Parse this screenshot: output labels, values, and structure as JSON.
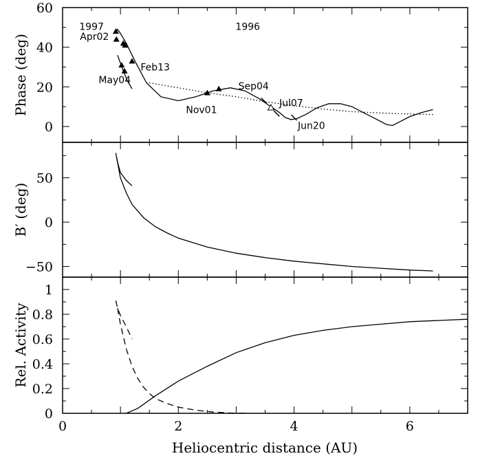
{
  "chart_data": [
    {
      "type": "line",
      "panel": "top",
      "ylabel": "Phase (deg)",
      "xlim": [
        0,
        7
      ],
      "ylim": [
        -8,
        60
      ],
      "yticks": [
        0,
        20,
        40,
        60
      ],
      "ytick_labels": [
        "0",
        "20",
        "40",
        "60"
      ],
      "series": [
        {
          "style": "solid",
          "x": [
            0.92,
            0.95,
            1.0,
            1.1,
            1.25,
            1.45,
            1.7,
            2.0,
            2.3,
            2.6,
            2.9,
            3.15,
            3.4,
            3.6,
            3.75,
            3.85,
            3.95,
            4.05,
            4.2,
            4.4,
            4.6,
            4.8,
            5.0,
            5.2,
            5.4,
            5.6,
            5.7,
            5.8,
            6.0,
            6.2,
            6.4
          ],
          "y": [
            48,
            49,
            47,
            42,
            33,
            22,
            15,
            13,
            15,
            18,
            19.5,
            18,
            14,
            10,
            7,
            4.5,
            3.5,
            4,
            6,
            9.5,
            11.5,
            11.5,
            10,
            7,
            4,
            1,
            0.5,
            2,
            5,
            7,
            8.5
          ]
        },
        {
          "style": "solid",
          "x": [
            0.95,
            1.0,
            1.05,
            1.12,
            1.2
          ],
          "y": [
            36,
            32,
            28,
            23,
            19
          ]
        },
        {
          "style": "dotted",
          "x": [
            1.5,
            2.0,
            2.5,
            3.0,
            3.5,
            4.0,
            4.5,
            5.0,
            5.5,
            6.0,
            6.4
          ],
          "y": [
            22,
            19.5,
            17,
            15,
            12.5,
            10.5,
            8.8,
            7.5,
            6.8,
            6.3,
            6.0
          ]
        }
      ],
      "filled_triangles": {
        "x": [
          0.92,
          0.93,
          1.05,
          1.08,
          1.2,
          1.02,
          1.07,
          2.5,
          2.7
        ],
        "y": [
          48,
          44,
          42,
          41,
          33,
          31,
          28,
          17,
          19
        ]
      },
      "open_triangles": {
        "x": [
          3.6
        ],
        "y": [
          9.5
        ]
      },
      "tick_marks": {
        "x": [
          3.48,
          3.7,
          4.0
        ],
        "y": [
          13,
          6.5,
          4.5
        ]
      },
      "annotations": [
        {
          "text": "1997",
          "x": 0.5,
          "y": 50.5
        },
        {
          "text": "Apr02",
          "x": 0.55,
          "y": 45.5
        },
        {
          "text": "1996",
          "x": 3.2,
          "y": 50.5
        },
        {
          "text": "Feb13",
          "x": 1.6,
          "y": 30
        },
        {
          "text": "May04",
          "x": 0.9,
          "y": 23.5
        },
        {
          "text": "Sep04",
          "x": 3.3,
          "y": 20.5
        },
        {
          "text": "Nov01",
          "x": 2.4,
          "y": 8.5
        },
        {
          "text": "Jul07",
          "x": 3.95,
          "y": 12
        },
        {
          "text": "Jun20",
          "x": 4.3,
          "y": 0.5
        }
      ]
    },
    {
      "type": "line",
      "panel": "middle",
      "ylabel": "B′ (deg)",
      "xlim": [
        0,
        7
      ],
      "ylim": [
        -62,
        90
      ],
      "yticks": [
        -50,
        0,
        50
      ],
      "ytick_labels": [
        "−50",
        "0",
        "50"
      ],
      "series": [
        {
          "style": "solid",
          "x": [
            0.92,
            0.93,
            0.96,
            1.0,
            1.1,
            1.2
          ],
          "y": [
            78,
            74,
            65,
            56,
            47,
            41
          ]
        },
        {
          "style": "solid",
          "x": [
            0.93,
            1.0,
            1.1,
            1.2,
            1.4,
            1.6,
            1.8,
            2.0,
            2.5,
            3.0,
            3.5,
            4.0,
            4.5,
            5.0,
            5.5,
            6.0,
            6.4
          ],
          "y": [
            74,
            50,
            33,
            20,
            5,
            -5,
            -12,
            -18,
            -28,
            -35,
            -40,
            -44,
            -47,
            -50,
            -52,
            -54,
            -55
          ]
        }
      ]
    },
    {
      "type": "line",
      "panel": "bottom",
      "xlabel": "Heliocentric distance (AU)",
      "ylabel": "Rel. Activity",
      "xlim": [
        0,
        7
      ],
      "ylim": [
        0,
        1.1
      ],
      "xticks": [
        0,
        2,
        4,
        6
      ],
      "xtick_labels": [
        "0",
        "2",
        "4",
        "6"
      ],
      "yticks": [
        0,
        0.2,
        0.4,
        0.6,
        0.8,
        1
      ],
      "ytick_labels": [
        "0",
        "0.2",
        "0.4",
        "0.6",
        "0.8",
        "1"
      ],
      "series": [
        {
          "style": "solid",
          "x": [
            1.1,
            1.3,
            1.6,
            2.0,
            2.5,
            3.0,
            3.5,
            4.0,
            4.5,
            5.0,
            5.5,
            6.0,
            6.5,
            7.0
          ],
          "y": [
            0,
            0.04,
            0.14,
            0.26,
            0.38,
            0.49,
            0.57,
            0.63,
            0.67,
            0.7,
            0.72,
            0.74,
            0.75,
            0.76
          ]
        },
        {
          "style": "dashed",
          "x": [
            0.92,
            0.95,
            1.0,
            1.1,
            1.2
          ],
          "y": [
            0.91,
            0.85,
            0.79,
            0.7,
            0.6
          ]
        },
        {
          "style": "dashed",
          "x": [
            0.95,
            1.0,
            1.1,
            1.2,
            1.3,
            1.4,
            1.5,
            1.6,
            1.8,
            2.0,
            2.3,
            2.6,
            2.9,
            3.2
          ],
          "y": [
            0.85,
            0.72,
            0.52,
            0.38,
            0.28,
            0.21,
            0.16,
            0.12,
            0.08,
            0.05,
            0.025,
            0.01,
            0.003,
            0
          ]
        }
      ]
    }
  ]
}
